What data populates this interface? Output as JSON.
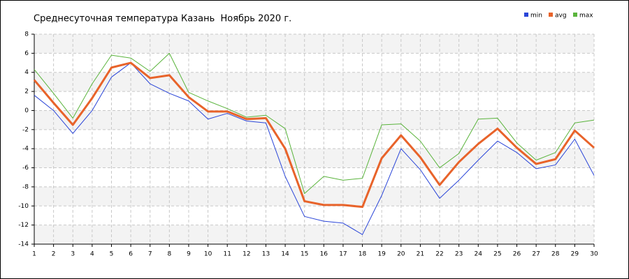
{
  "chart_data": {
    "type": "line",
    "title": "Среднесуточная температура Казань  Ноябрь 2020 г.",
    "x": [
      1,
      2,
      3,
      4,
      5,
      6,
      7,
      8,
      9,
      10,
      11,
      12,
      13,
      14,
      15,
      16,
      17,
      18,
      19,
      20,
      21,
      22,
      23,
      24,
      25,
      26,
      27,
      28,
      29,
      30
    ],
    "xlim": [
      1,
      30
    ],
    "xticks": [
      1,
      2,
      3,
      4,
      5,
      6,
      7,
      8,
      9,
      10,
      11,
      12,
      13,
      14,
      15,
      16,
      17,
      18,
      19,
      20,
      21,
      22,
      23,
      24,
      25,
      26,
      27,
      28,
      29,
      30
    ],
    "ylim": [
      -14,
      8
    ],
    "yticks": [
      -14,
      -12,
      -10,
      -8,
      -6,
      -4,
      -2,
      0,
      2,
      4,
      6,
      8
    ],
    "grid": true,
    "legend": "top-right",
    "series": [
      {
        "name": "min",
        "color": "#2a45d8",
        "values": [
          1.6,
          0.0,
          -2.4,
          0.0,
          3.5,
          5.0,
          2.8,
          1.8,
          1.0,
          -0.9,
          -0.3,
          -1.1,
          -1.3,
          -6.9,
          -11.1,
          -11.6,
          -11.8,
          -13.0,
          -8.9,
          -4.0,
          -6.2,
          -9.2,
          -7.3,
          -5.2,
          -3.2,
          -4.4,
          -6.1,
          -5.7,
          -3.0,
          -6.8
        ]
      },
      {
        "name": "avg",
        "color": "#e8632a",
        "values": [
          3.2,
          0.8,
          -1.5,
          1.3,
          4.5,
          5.0,
          3.4,
          3.7,
          1.4,
          -0.1,
          -0.1,
          -0.9,
          -0.8,
          -4.0,
          -9.5,
          -9.9,
          -9.9,
          -10.1,
          -5.0,
          -2.6,
          -4.9,
          -7.8,
          -5.4,
          -3.5,
          -1.9,
          -3.9,
          -5.6,
          -5.1,
          -2.1,
          -3.9
        ]
      },
      {
        "name": "max",
        "color": "#5ab43c",
        "values": [
          4.3,
          1.8,
          -0.8,
          2.8,
          5.8,
          5.5,
          4.1,
          6.0,
          1.9,
          1.0,
          0.2,
          -0.7,
          -0.5,
          -1.9,
          -8.7,
          -6.9,
          -7.3,
          -7.1,
          -1.5,
          -1.4,
          -3.2,
          -6.0,
          -4.5,
          -0.9,
          -0.8,
          -3.4,
          -5.2,
          -4.4,
          -1.3,
          -1.0
        ]
      }
    ]
  }
}
